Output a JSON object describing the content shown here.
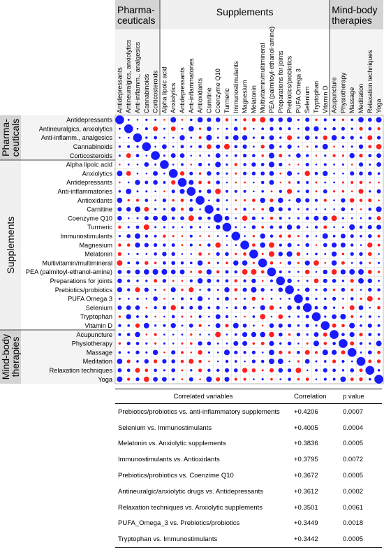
{
  "chart_data": {
    "type": "heatmap",
    "variables": [
      "Antidepressants",
      "Antineuralgics, anxiolytics",
      "Anti-inflamm., analgesics",
      "Cannabinoids",
      "Corticosteroids",
      "Alpha lipoic acid",
      "Anxiolytics",
      "Antidepressants",
      "Anti-inflammatories",
      "Antioxidants",
      "Carnitine",
      "Coenzyme Q10",
      "Turmeric",
      "Immunostimulants",
      "Magnesium",
      "Melatonin",
      "Multivitamin/multimineral",
      "PEA (palmitoyl-ethanol-amine)",
      "Preparations for joints",
      "Prebiotics/probiotics",
      "PUFA Omega 3",
      "Selenium",
      "Tryptophan",
      "Vitamin D",
      "Acupuncture",
      "Physiotherapy",
      "Massage",
      "Meditation",
      "Relaxation techniques",
      "Yoga"
    ],
    "column_labels": [
      "Antidepressants",
      "Antineuralgics, anxiolytics",
      "Anti-inflamm., analgesics",
      "Cannabinoids",
      "Corticosteroids",
      "Alpha lipoic acid",
      "Anxiolytics",
      "Antidepressants",
      "Anti-inflammatories",
      "Antioxidants",
      "Carnitine",
      "Coenzyme Q10",
      "Turmeric",
      "Immunostimulants",
      "Magnesium",
      "Melatonin",
      "Multivitamin/multimineral",
      "PEA (palmitoyl-ethanol-amine)",
      "Preparations for joints",
      "Prebiotics/probiotics",
      "PUFA Omega 3",
      "Selenium",
      "Tryptophan",
      "Vitamin D",
      "Acupuncture",
      "Physiotherapy",
      "Massage",
      "Meditation",
      "Relaxation techniques",
      "Yoga"
    ],
    "groups": [
      {
        "name": "Pharma-\nceuticals",
        "start": 0,
        "end": 4
      },
      {
        "name": "Supplements",
        "start": 5,
        "end": 23
      },
      {
        "name": "Mind-body\ntherapies",
        "start": 24,
        "end": 29
      }
    ],
    "positive_color": "#1a1aff",
    "negative_color": "#ff2020",
    "value_range": [
      -1,
      1
    ]
  },
  "table": {
    "headers": [
      "Correlated variables",
      "Correlation",
      "p value"
    ],
    "rows": [
      [
        "Prebiotics/probiotics vs. anti-inflammatory supplements",
        "+0.4206",
        "0.0007"
      ],
      [
        "Selenium vs. Immunostimulants",
        "+0.4005",
        "0.0004"
      ],
      [
        "Melatonin vs. Anxiolytic supplements",
        "+0.3836",
        "0.0005"
      ],
      [
        "Immunostimulants vs. Antioxidants",
        "+0.3795",
        "0.0072"
      ],
      [
        "Prebiotics/probiotics vs. Coenzime Q10",
        "+0.3672",
        "0.0005"
      ],
      [
        "Antineuralgic/anxiolytic drugs vs. Antidepressants",
        "+0.3612",
        "0.0002"
      ],
      [
        "Relaxation techniques vs. Anxiolytic supplements",
        "+0.3501",
        "0.0061"
      ],
      [
        "PUFA_Omega_3  vs. Prebiotics/probiotics",
        "+0.3449",
        "0.0018"
      ],
      [
        "Tryptophan vs. Immunostimulants",
        "+0.3442",
        "0.0005"
      ]
    ]
  }
}
